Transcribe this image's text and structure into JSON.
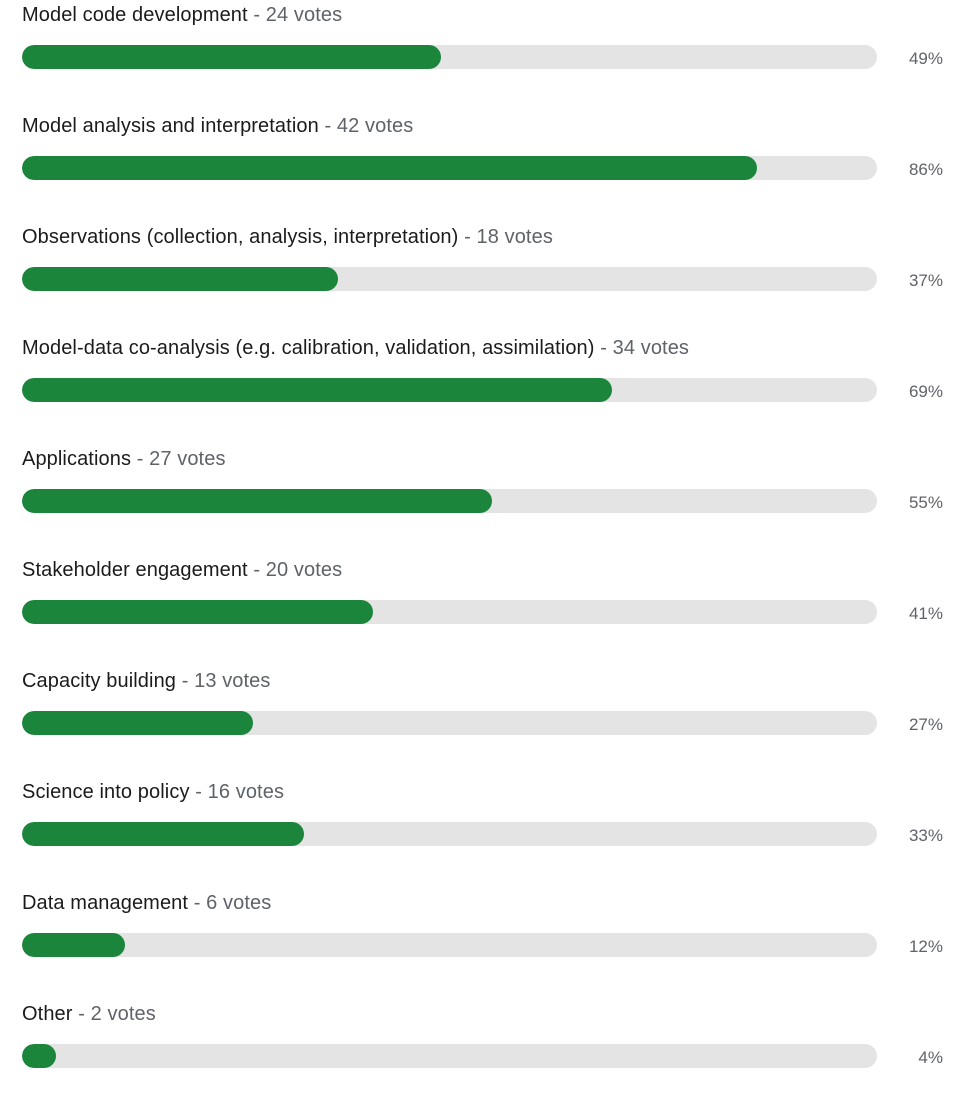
{
  "poll": {
    "bar_color": "#1b853c",
    "track_color": "#e4e4e4",
    "options": [
      {
        "label": "Model code development",
        "votes_text": "- 24 votes",
        "percent_text": "49%",
        "percent": 49
      },
      {
        "label": "Model analysis and interpretation",
        "votes_text": "- 42 votes",
        "percent_text": "86%",
        "percent": 86
      },
      {
        "label": "Observations (collection, analysis, interpretation)",
        "votes_text": "- 18 votes",
        "percent_text": "37%",
        "percent": 37
      },
      {
        "label": "Model-data co-analysis (e.g. calibration, validation, assimilation)",
        "votes_text": "- 34 votes",
        "percent_text": "69%",
        "percent": 69
      },
      {
        "label": "Applications",
        "votes_text": "- 27 votes",
        "percent_text": "55%",
        "percent": 55
      },
      {
        "label": "Stakeholder engagement",
        "votes_text": "- 20 votes",
        "percent_text": "41%",
        "percent": 41
      },
      {
        "label": "Capacity building",
        "votes_text": "- 13 votes",
        "percent_text": "27%",
        "percent": 27
      },
      {
        "label": "Science into policy",
        "votes_text": "- 16 votes",
        "percent_text": "33%",
        "percent": 33
      },
      {
        "label": "Data management",
        "votes_text": "- 6 votes",
        "percent_text": "12%",
        "percent": 12
      },
      {
        "label": "Other",
        "votes_text": "- 2 votes",
        "percent_text": "4%",
        "percent": 4
      }
    ]
  }
}
